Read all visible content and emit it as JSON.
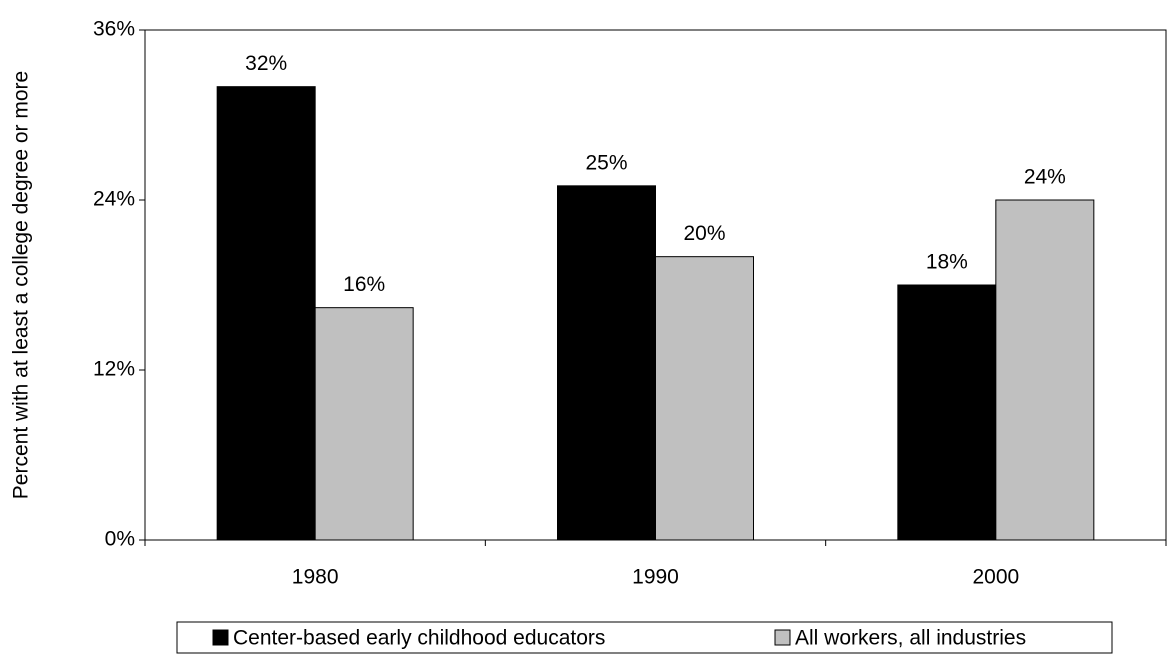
{
  "chart_data": {
    "type": "bar",
    "y_label": "Percent with at least a college degree or more",
    "categories": [
      "1980",
      "1990",
      "2000"
    ],
    "series": [
      {
        "name": "Center-based early childhood educators",
        "color": "#000000",
        "values": [
          32,
          25,
          18
        ],
        "value_labels": [
          "32%",
          "25%",
          "18%"
        ]
      },
      {
        "name": "All workers, all industries",
        "color": "#c0c0c0",
        "values": [
          16.4,
          20,
          24
        ],
        "value_labels": [
          "16%",
          "20%",
          "24%"
        ]
      }
    ],
    "ylim": [
      0,
      36
    ],
    "yticks": [
      {
        "value": 0,
        "label": "0%"
      },
      {
        "value": 12,
        "label": "12%"
      },
      {
        "value": 24,
        "label": "24%"
      },
      {
        "value": 36,
        "label": "36%"
      }
    ],
    "grid": false,
    "legend": "bottom"
  }
}
